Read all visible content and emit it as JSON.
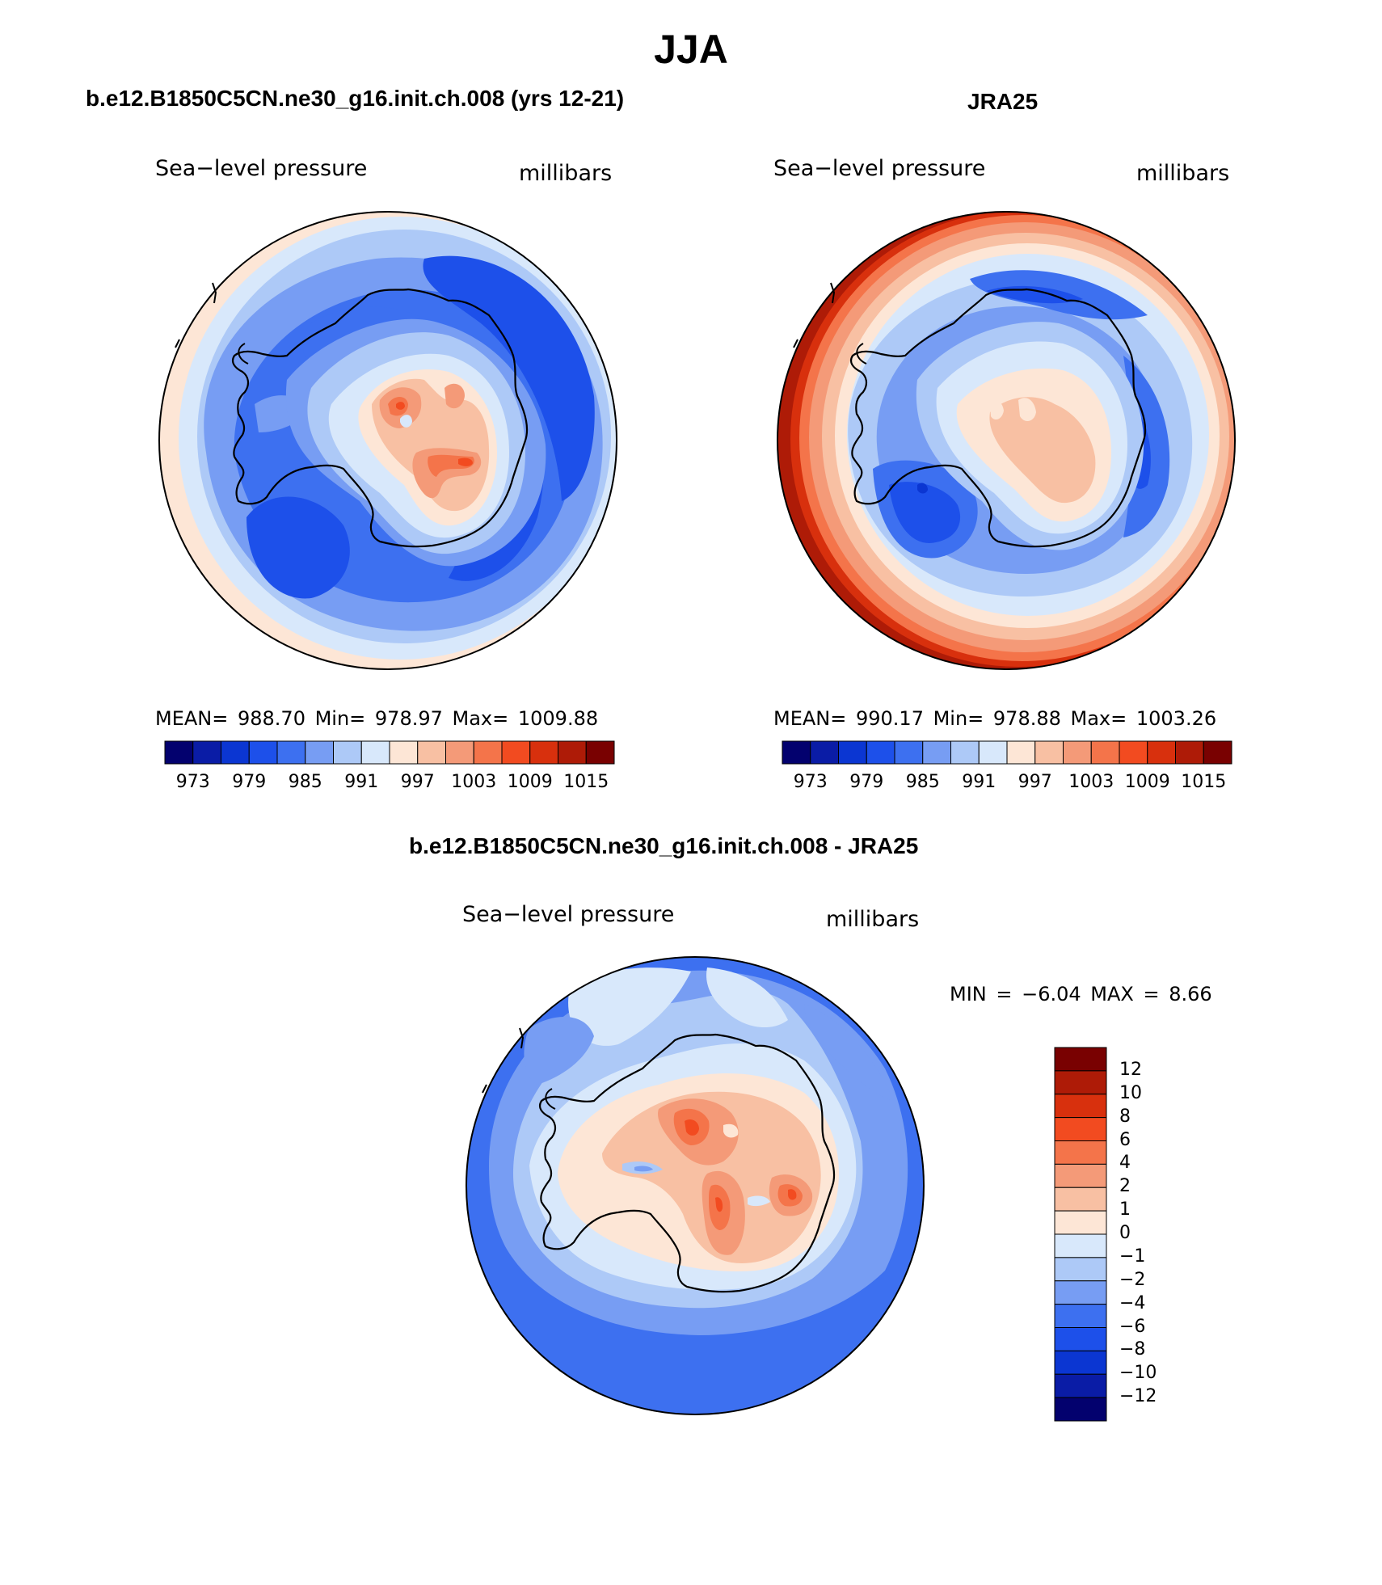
{
  "title": "JJA",
  "colors": {
    "abs_scale": [
      "#03016e",
      "#0a1ca6",
      "#0b36d2",
      "#1d50ea",
      "#3d70f0",
      "#779df3",
      "#adc9f7",
      "#d8e8fb",
      "#fde6d6",
      "#f8c0a3",
      "#f49a78",
      "#f4744a",
      "#f24b20",
      "#d8300d",
      "#ae1b07",
      "#790101"
    ],
    "diff_scale": [
      "#03016e",
      "#0a1ca6",
      "#0b36d2",
      "#1d50ea",
      "#3d70f0",
      "#779df3",
      "#adc9f7",
      "#d8e8fb",
      "#fde6d6",
      "#f8c0a3",
      "#f49a78",
      "#f4744a",
      "#f24b20",
      "#d8300d",
      "#ae1b07",
      "#790101"
    ]
  },
  "panels": {
    "model": {
      "title": "b.e12.B1850C5CN.ne30_g16.init.ch.008 (yrs 12-21)",
      "var_label": "Sea−level pressure",
      "units": "millibars",
      "stats": "MEAN=  988.70    Min=  978.97    Max=  1009.88",
      "colorbar_labels": [
        "973",
        "979",
        "985",
        "991",
        "997",
        "1003",
        "1009",
        "1015"
      ]
    },
    "obs": {
      "title": "JRA25",
      "var_label": "Sea−level pressure",
      "units": "millibars",
      "stats": "MEAN=  990.17    Min=  978.88    Max=  1003.26",
      "colorbar_labels": [
        "973",
        "979",
        "985",
        "991",
        "997",
        "1003",
        "1009",
        "1015"
      ]
    },
    "diff": {
      "title": "b.e12.B1850C5CN.ne30_g16.init.ch.008 - JRA25",
      "var_label": "Sea−level pressure",
      "units": "millibars",
      "stats": "MIN =    −6.04  MAX =     8.66",
      "colorbar_labels": [
        "12",
        "10",
        "8",
        "6",
        "4",
        "2",
        "1",
        "0",
        "−1",
        "−2",
        "−4",
        "−6",
        "−8",
        "−10",
        "−12"
      ]
    }
  }
}
